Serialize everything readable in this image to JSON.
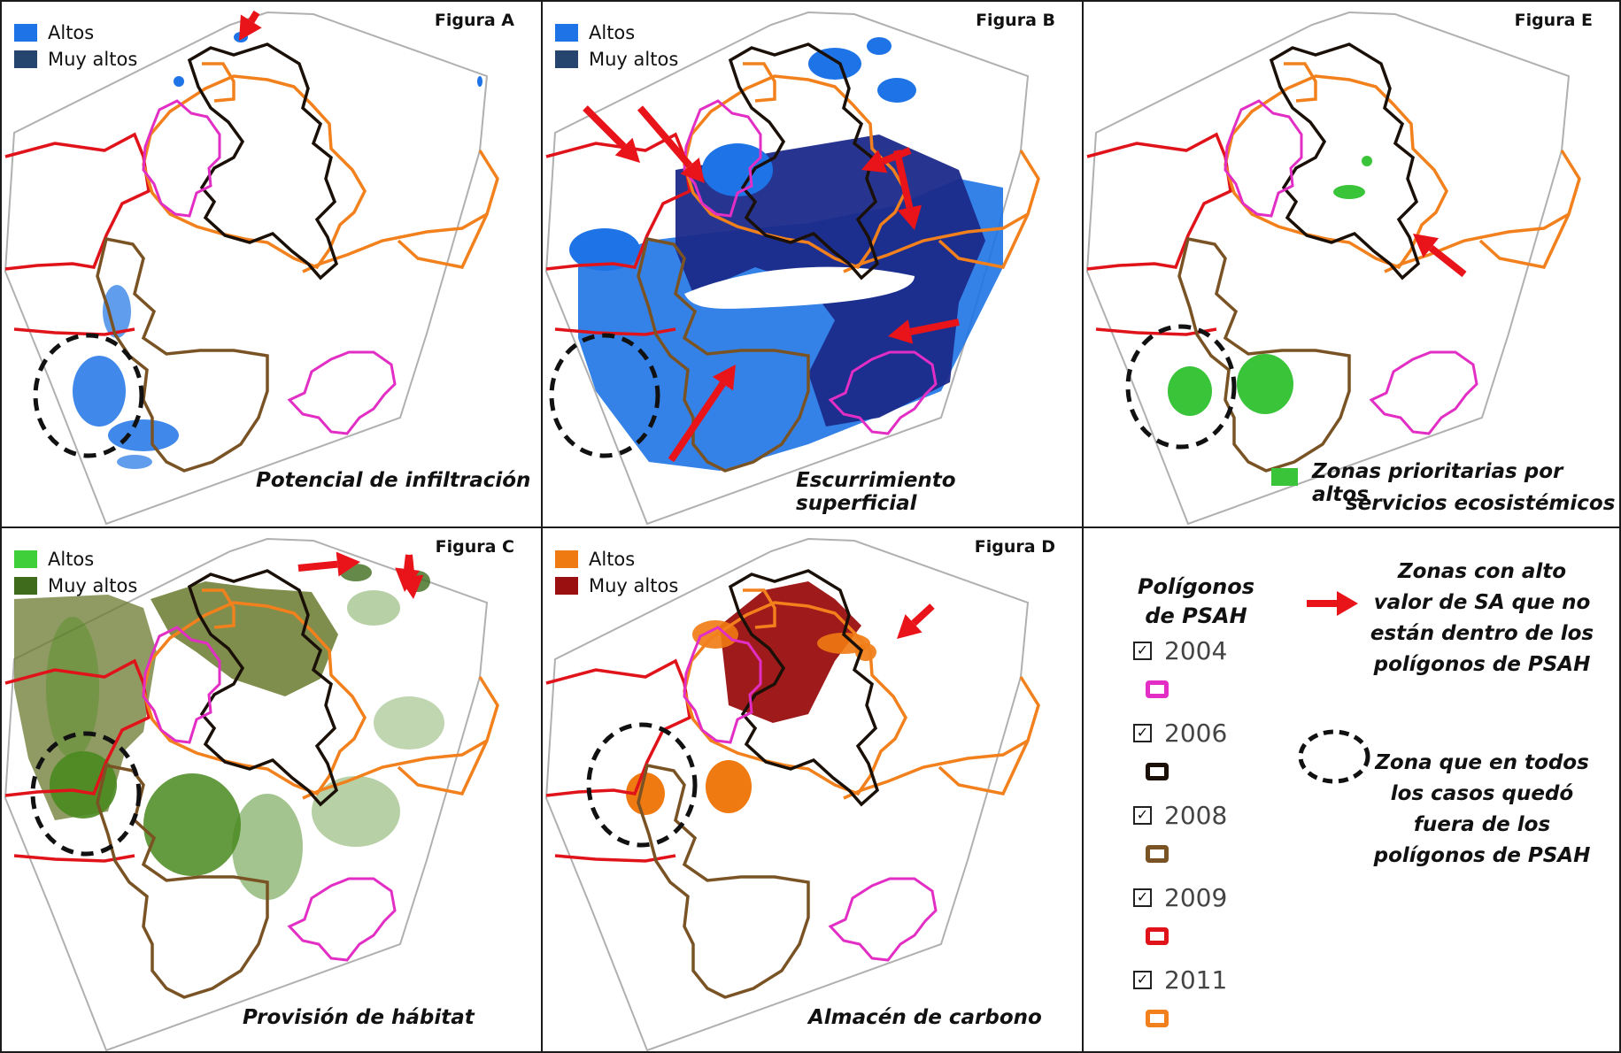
{
  "panels": {
    "a": {
      "label": "Figura A",
      "caption": "Potencial de infiltración",
      "legend": [
        {
          "label": "Altos",
          "color": "#1e74e6"
        },
        {
          "label": "Muy altos",
          "color": "#26456e"
        }
      ]
    },
    "b": {
      "label": "Figura B",
      "caption": "Escurrimiento superficial",
      "legend": [
        {
          "label": "Altos",
          "color": "#1e74e6"
        },
        {
          "label": "Muy altos",
          "color": "#26456e"
        }
      ]
    },
    "e": {
      "label": "Figura E",
      "caption_line1": "Zonas prioritarias por altos",
      "caption_line2": "servicios ecosistémicos",
      "swatch_color": "#39c43a"
    },
    "c": {
      "label": "Figura C",
      "caption": "Provisión de hábitat",
      "legend": [
        {
          "label": "Altos",
          "color": "#3ecf3a"
        },
        {
          "label": "Muy altos",
          "color": "#3f6b1c"
        }
      ]
    },
    "d": {
      "label": "Figura D",
      "caption": "Almacén de carbono",
      "legend": [
        {
          "label": "Altos",
          "color": "#f07a12"
        },
        {
          "label": "Muy altos",
          "color": "#9a0f0f"
        }
      ]
    }
  },
  "key": {
    "title_line1": "Polígonos",
    "title_line2": "de PSAH",
    "years": [
      {
        "year": "2004",
        "color": "#e22ec4",
        "checked": "✓"
      },
      {
        "year": "2006",
        "color": "#1a1008",
        "checked": "✓"
      },
      {
        "year": "2008",
        "color": "#7a5325",
        "checked": "✓"
      },
      {
        "year": "2009",
        "color": "#e0131a",
        "checked": "✓"
      },
      {
        "year": "2011",
        "color": "#f2801c",
        "checked": "✓"
      }
    ],
    "arrow_note": [
      "Zonas con alto",
      "valor de SA que no",
      "están dentro de los",
      "polígonos de PSAH"
    ],
    "circle_note": [
      "Zona que en todos",
      "los casos quedó",
      "fuera de los",
      "polígonos de PSAH"
    ],
    "arrow_color": "#e8141a"
  }
}
